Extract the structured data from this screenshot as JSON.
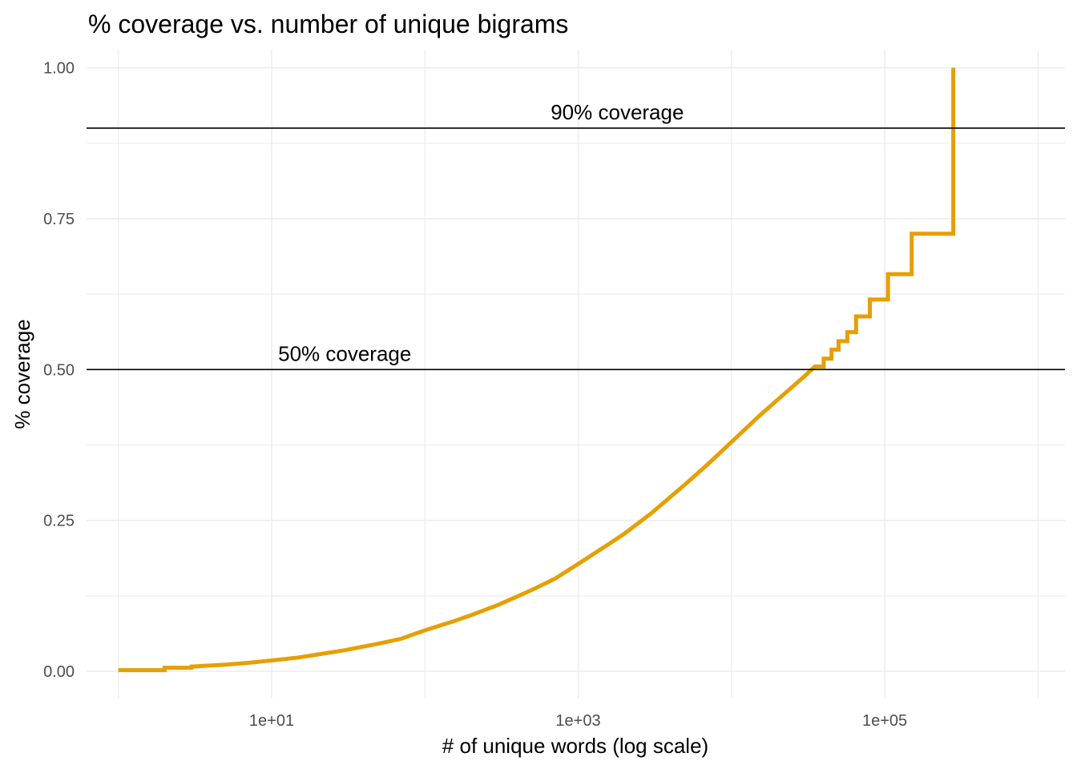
{
  "chart_data": {
    "type": "line",
    "title": "% coverage vs. number of unique bigrams",
    "xlabel": "# of unique words (log scale)",
    "ylabel": "% coverage",
    "x_scale": "log10",
    "xlim": [
      0.62,
      1500000
    ],
    "ylim": [
      -0.045,
      1.03
    ],
    "x_ticks": [
      {
        "value": 10,
        "label": "1e+01"
      },
      {
        "value": 1000,
        "label": "1e+03"
      },
      {
        "value": 100000,
        "label": "1e+05"
      }
    ],
    "y_ticks": [
      {
        "value": 0.0,
        "label": "0.00"
      },
      {
        "value": 0.25,
        "label": "0.25"
      },
      {
        "value": 0.5,
        "label": "0.50"
      },
      {
        "value": 0.75,
        "label": "0.75"
      },
      {
        "value": 1.0,
        "label": "1.00"
      }
    ],
    "grid": true,
    "legend": "none",
    "series": [
      {
        "color": "#E69F00",
        "points": [
          [
            1,
            0.002
          ],
          [
            2,
            0.002
          ],
          [
            2,
            0.006
          ],
          [
            3,
            0.006
          ],
          [
            3,
            0.008
          ],
          [
            5,
            0.011
          ],
          [
            7,
            0.014
          ],
          [
            10,
            0.018
          ],
          [
            15,
            0.023
          ],
          [
            20,
            0.028
          ],
          [
            30,
            0.035
          ],
          [
            50,
            0.046
          ],
          [
            70,
            0.054
          ],
          [
            100,
            0.068
          ],
          [
            150,
            0.082
          ],
          [
            200,
            0.093
          ],
          [
            300,
            0.11
          ],
          [
            500,
            0.135
          ],
          [
            700,
            0.153
          ],
          [
            1000,
            0.178
          ],
          [
            1500,
            0.207
          ],
          [
            2000,
            0.228
          ],
          [
            3000,
            0.262
          ],
          [
            5000,
            0.31
          ],
          [
            7000,
            0.343
          ],
          [
            10000,
            0.38
          ],
          [
            15000,
            0.422
          ],
          [
            20000,
            0.45
          ],
          [
            30000,
            0.489
          ],
          [
            35000,
            0.505
          ],
          [
            40000,
            0.505
          ],
          [
            40000,
            0.518
          ],
          [
            45000,
            0.518
          ],
          [
            45000,
            0.533
          ],
          [
            50000,
            0.533
          ],
          [
            50000,
            0.547
          ],
          [
            57000,
            0.547
          ],
          [
            57000,
            0.562
          ],
          [
            65000,
            0.562
          ],
          [
            65000,
            0.588
          ],
          [
            80000,
            0.588
          ],
          [
            80000,
            0.616
          ],
          [
            105000,
            0.616
          ],
          [
            105000,
            0.658
          ],
          [
            150000,
            0.658
          ],
          [
            150000,
            0.725
          ],
          [
            280000,
            0.725
          ],
          [
            280000,
            1.0
          ]
        ]
      }
    ],
    "reference_lines": [
      {
        "y": 0.9,
        "label": "90% coverage",
        "label_x": 1800
      },
      {
        "y": 0.5,
        "label": "50% coverage",
        "label_x": 30
      }
    ]
  }
}
